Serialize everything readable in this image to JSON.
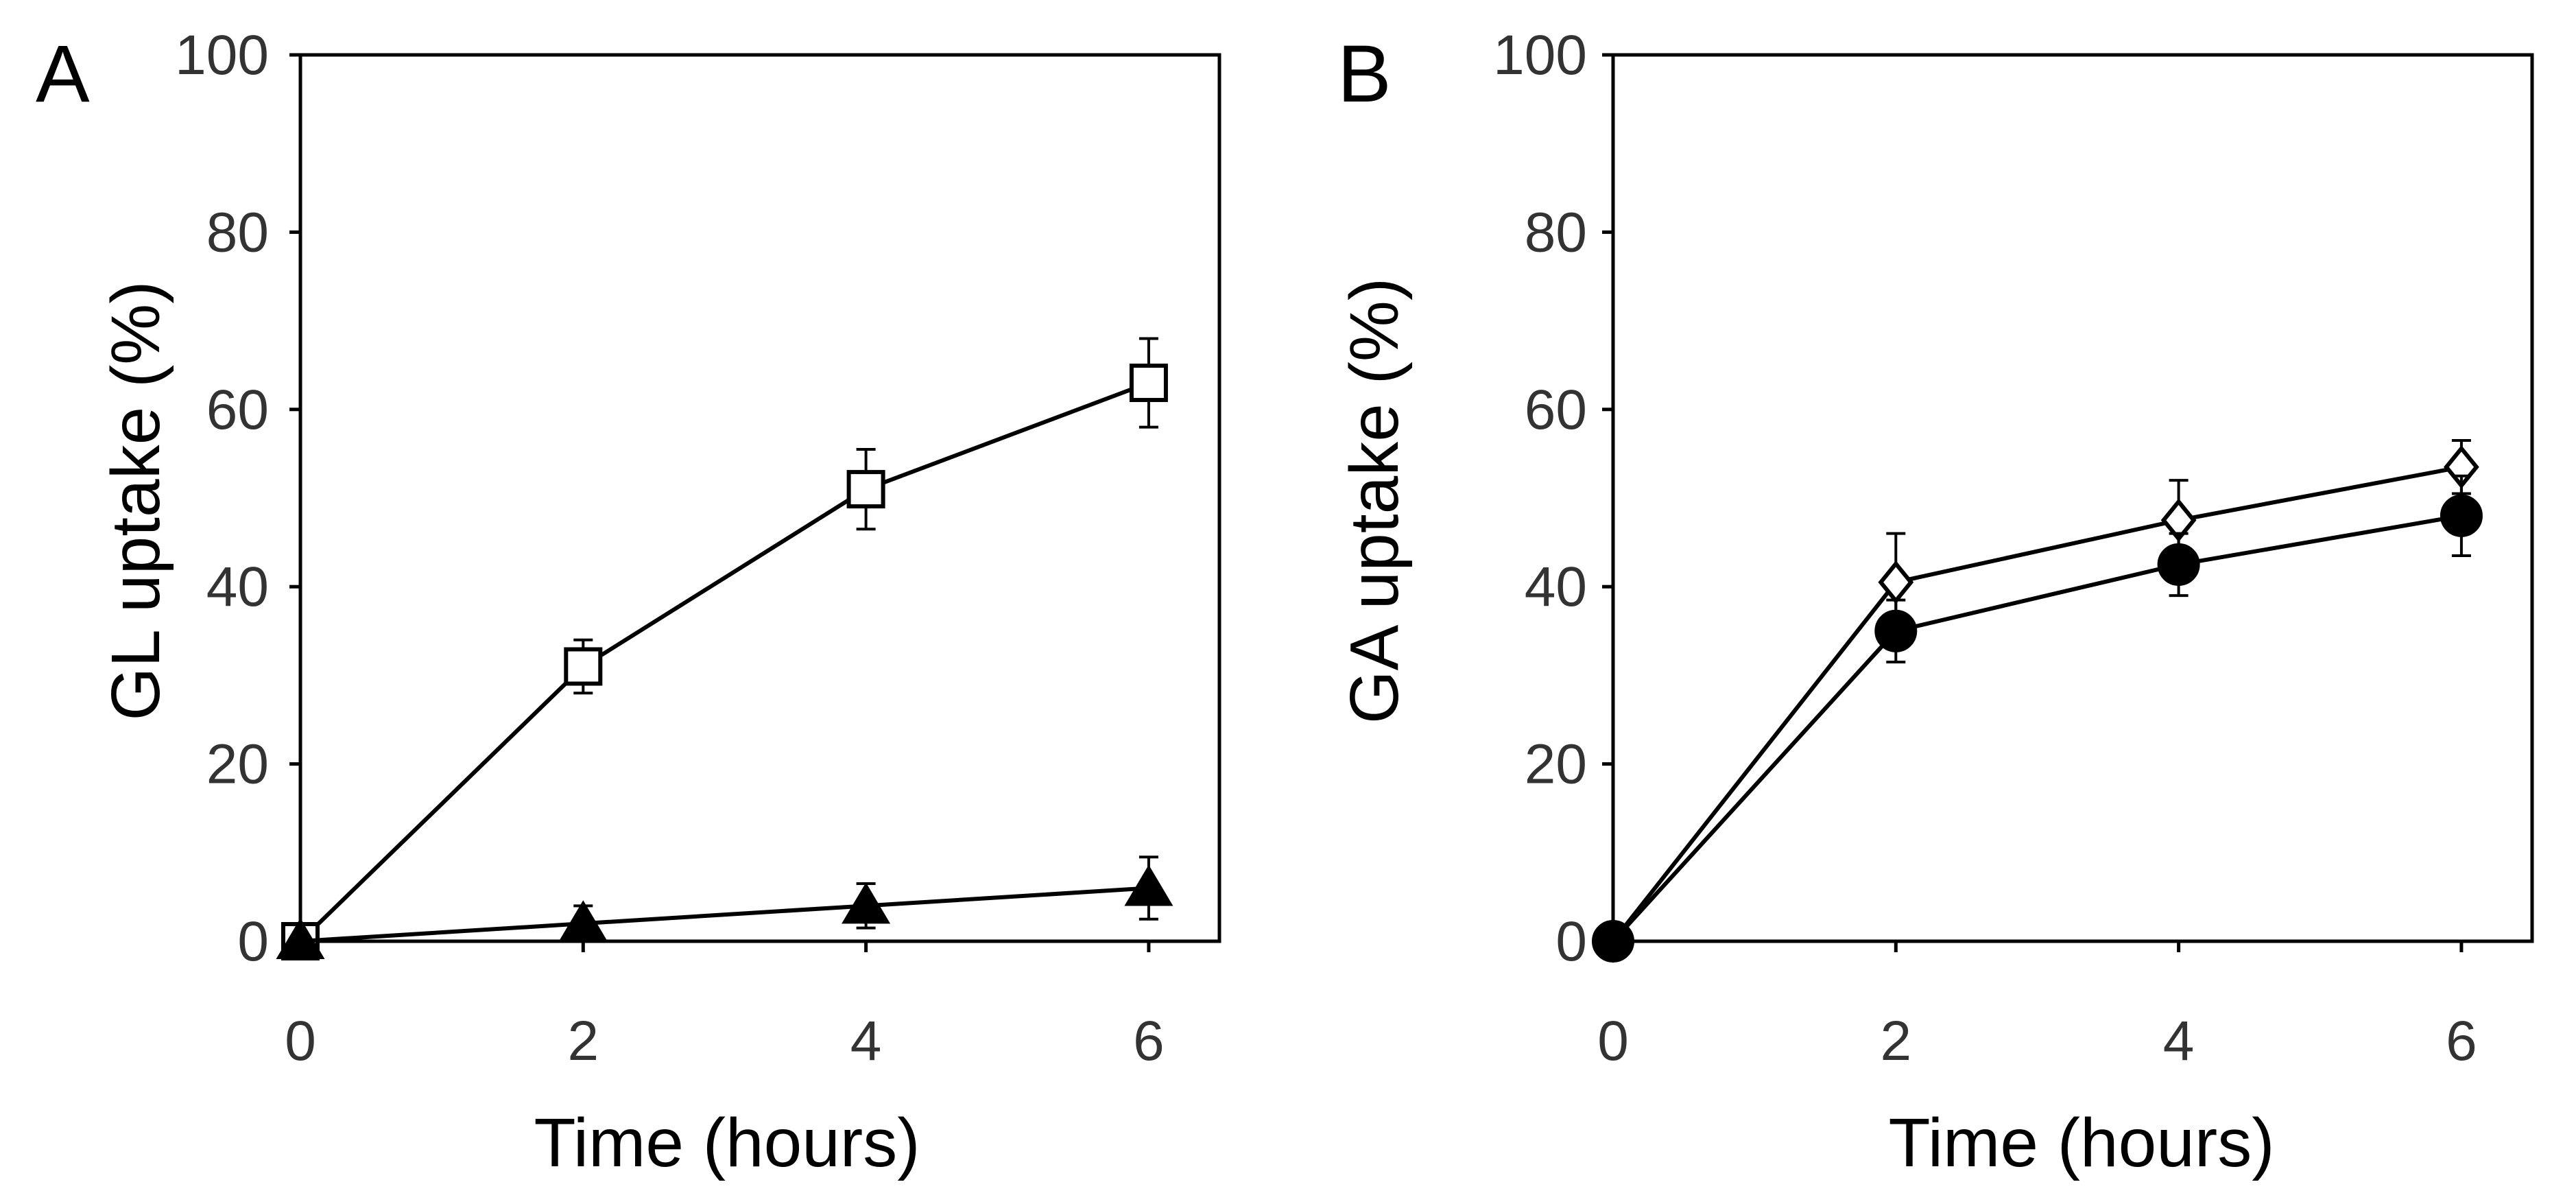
{
  "colors": {
    "ink": "#000000",
    "tick_text": "#333333",
    "background": "#ffffff"
  },
  "chart_data": [
    {
      "panel": "A",
      "type": "line",
      "title": "",
      "xlabel": "Time (hours)",
      "ylabel": "GL uptake (%)",
      "x": [
        0,
        2,
        4,
        6
      ],
      "xticks": [
        "0",
        "2",
        "4",
        "6"
      ],
      "yticks": [
        "0",
        "20",
        "40",
        "60",
        "80",
        "100"
      ],
      "xlim": [
        0,
        6.5
      ],
      "ylim": [
        0,
        100
      ],
      "grid": false,
      "legend": "none",
      "series": [
        {
          "name": "open square",
          "marker": "square",
          "filled": false,
          "values": [
            0,
            31,
            51,
            63
          ],
          "errors": [
            0,
            3,
            4.5,
            5
          ]
        },
        {
          "name": "filled triangle",
          "marker": "triangle",
          "filled": true,
          "values": [
            0,
            2,
            4,
            6
          ],
          "errors": [
            0,
            2,
            2.5,
            3.5
          ]
        }
      ]
    },
    {
      "panel": "B",
      "type": "line",
      "title": "",
      "xlabel": "Time (hours)",
      "ylabel": "GA uptake (%)",
      "x": [
        0,
        2,
        4,
        6
      ],
      "xticks": [
        "0",
        "2",
        "4",
        "6"
      ],
      "yticks": [
        "0",
        "20",
        "40",
        "60",
        "80",
        "100"
      ],
      "xlim": [
        0,
        6.5
      ],
      "ylim": [
        0,
        100
      ],
      "grid": false,
      "legend": "none",
      "series": [
        {
          "name": "open diamond",
          "marker": "diamond",
          "filled": false,
          "values": [
            0,
            40.5,
            47.5,
            53.5
          ],
          "errors": [
            0,
            5.5,
            4.5,
            3
          ]
        },
        {
          "name": "filled circle",
          "marker": "circle",
          "filled": true,
          "values": [
            0,
            35,
            42.5,
            48
          ],
          "errors": [
            0,
            3.5,
            3.5,
            4.5
          ]
        }
      ]
    }
  ]
}
